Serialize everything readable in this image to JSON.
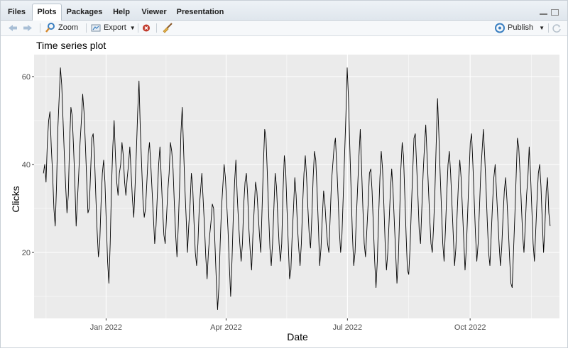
{
  "tabs": [
    {
      "label": "Files",
      "active": false
    },
    {
      "label": "Plots",
      "active": true
    },
    {
      "label": "Packages",
      "active": false
    },
    {
      "label": "Help",
      "active": false
    },
    {
      "label": "Viewer",
      "active": false
    },
    {
      "label": "Presentation",
      "active": false
    }
  ],
  "toolbar": {
    "zoom_label": "Zoom",
    "export_label": "Export",
    "publish_label": "Publish",
    "icons": [
      "back-arrow-icon",
      "forward-arrow-icon",
      "zoom-magnifier-icon",
      "export-icon",
      "remove-plot-icon",
      "broom-clear-icon",
      "publish-icon",
      "refresh-icon"
    ]
  },
  "colors": {
    "panel_bg": "#ebebeb",
    "grid": "#ffffff",
    "line": "#000000",
    "accent": "#3a7fc1",
    "remove": "#c0392b"
  },
  "chart_data": {
    "type": "line",
    "title": "Time series plot",
    "xlabel": "Date",
    "ylabel": "Clicks",
    "x_start": "2021-11-15",
    "x_end": "2022-11-30",
    "xlim": [
      "2021-11-08",
      "2022-12-07"
    ],
    "ylim": [
      5,
      65
    ],
    "x_tick_labels": [
      "Jan 2022",
      "Apr 2022",
      "Jul 2022",
      "Oct 2022"
    ],
    "x_tick_dates": [
      "2022-01-01",
      "2022-04-01",
      "2022-07-01",
      "2022-10-01"
    ],
    "y_ticks": [
      20,
      40,
      60
    ],
    "grid": true,
    "series": [
      {
        "values": [
          38,
          40,
          36,
          45,
          50,
          52,
          44,
          38,
          30,
          26,
          35,
          48,
          55,
          62,
          58,
          50,
          42,
          35,
          29,
          33,
          45,
          53,
          51,
          44,
          36,
          26,
          32,
          38,
          45,
          50,
          56,
          52,
          45,
          37,
          29,
          30,
          38,
          46,
          47,
          42,
          33,
          25,
          19,
          22,
          31,
          38,
          41,
          36,
          27,
          18,
          13,
          22,
          35,
          44,
          50,
          42,
          36,
          33,
          38,
          40,
          45,
          42,
          36,
          33,
          37,
          40,
          44,
          38,
          32,
          28,
          35,
          43,
          52,
          59,
          48,
          40,
          32,
          28,
          30,
          36,
          42,
          45,
          40,
          34,
          28,
          22,
          26,
          33,
          40,
          44,
          37,
          30,
          24,
          22,
          28,
          34,
          38,
          45,
          43,
          39,
          31,
          24,
          19,
          26,
          35,
          47,
          53,
          44,
          35,
          28,
          20,
          26,
          31,
          38,
          35,
          27,
          20,
          17,
          22,
          30,
          34,
          38,
          32,
          26,
          19,
          14,
          20,
          24,
          27,
          31,
          30,
          22,
          14,
          7,
          12,
          22,
          30,
          35,
          40,
          37,
          31,
          25,
          17,
          10,
          18,
          28,
          36,
          41,
          33,
          27,
          22,
          18,
          22,
          31,
          36,
          38,
          33,
          25,
          20,
          16,
          24,
          30,
          36,
          34,
          29,
          24,
          20,
          30,
          40,
          48,
          46,
          38,
          29,
          21,
          17,
          22,
          30,
          38,
          35,
          28,
          22,
          18,
          22,
          34,
          42,
          39,
          30,
          22,
          14,
          16,
          24,
          30,
          37,
          33,
          26,
          21,
          17,
          22,
          31,
          38,
          42,
          37,
          30,
          24,
          21,
          28,
          37,
          43,
          41,
          34,
          26,
          17,
          21,
          28,
          34,
          31,
          26,
          22,
          20,
          28,
          36,
          40,
          44,
          46,
          40,
          33,
          25,
          20,
          24,
          33,
          42,
          51,
          62,
          55,
          44,
          34,
          24,
          17,
          20,
          28,
          35,
          42,
          48,
          39,
          30,
          22,
          19,
          25,
          31,
          38,
          39,
          34,
          26,
          18,
          12,
          18,
          28,
          37,
          43,
          39,
          31,
          22,
          16,
          20,
          27,
          34,
          39,
          34,
          27,
          20,
          13,
          18,
          28,
          39,
          45,
          42,
          33,
          24,
          16,
          15,
          21,
          30,
          38,
          46,
          47,
          40,
          33,
          25,
          22,
          30,
          38,
          44,
          49,
          42,
          35,
          28,
          22,
          20,
          26,
          34,
          45,
          55,
          47,
          38,
          30,
          22,
          18,
          25,
          33,
          40,
          43,
          38,
          31,
          24,
          17,
          21,
          29,
          36,
          41,
          37,
          30,
          23,
          16,
          21,
          29,
          37,
          45,
          47,
          40,
          32,
          24,
          18,
          22,
          30,
          38,
          43,
          48,
          42,
          35,
          27,
          20,
          17,
          24,
          31,
          37,
          40,
          34,
          28,
          22,
          17,
          21,
          28,
          34,
          37,
          32,
          26,
          19,
          13,
          12,
          20,
          28,
          37,
          46,
          44,
          38,
          31,
          24,
          20,
          26,
          33,
          37,
          44,
          38,
          30,
          22,
          18,
          25,
          32,
          38,
          40,
          35,
          27,
          20,
          26,
          34,
          37,
          29,
          26
        ]
      }
    ]
  }
}
